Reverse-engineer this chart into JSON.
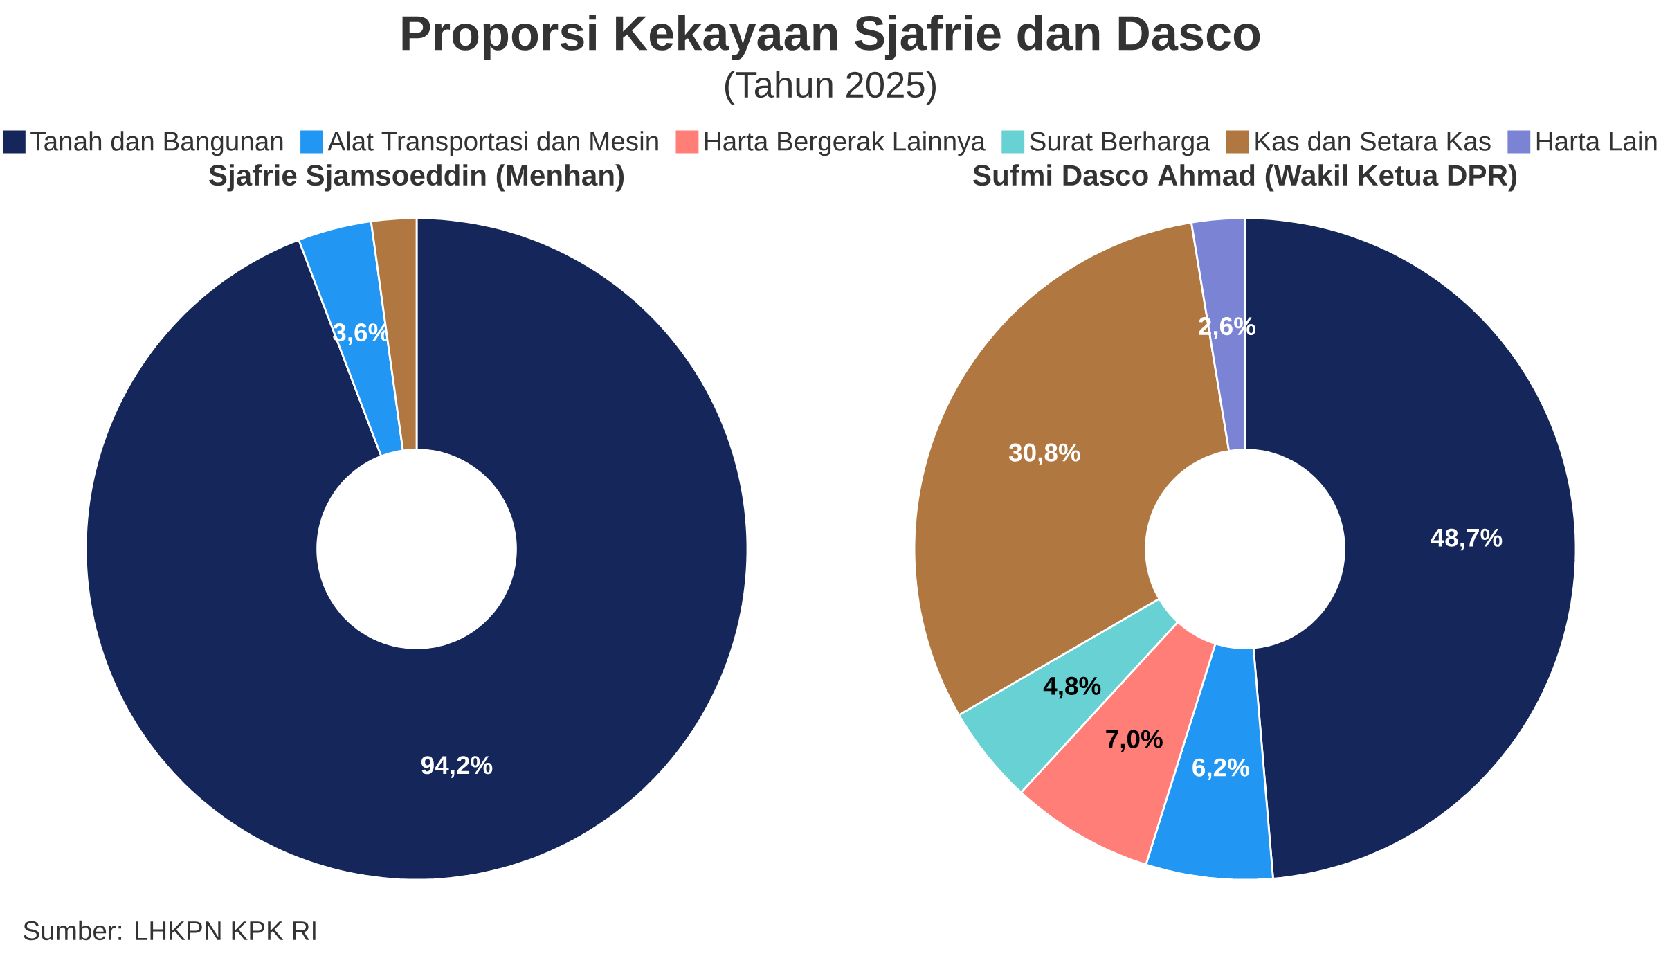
{
  "chart_data": [
    {
      "type": "other",
      "title": "Proporsi Kekayaan Sjafrie dan Dasco",
      "subtitle": "(Tahun 2025)",
      "annotations": [
        "Sumber: LHKPN KPK RI"
      ]
    },
    {
      "type": "donut",
      "categories": [
        "Tanah dan Bangunan",
        "Alat Transportasi dan Mesin",
        "Harta Bergerak Lainnya",
        "Surat Berharga",
        "Kas dan Setara Kas",
        "Harta Lain"
      ],
      "colors": [
        "#15275a",
        "#2196f3",
        "#ff7f78",
        "#67d1d4",
        "#b07840",
        "#7b84d4"
      ],
      "legend": "top",
      "series": [
        {
          "name": "Sjafrie Sjamsoeddin (Menhan)",
          "values": [
            94.2,
            3.6,
            null,
            null,
            2.2,
            null
          ],
          "value_labels": [
            "94,2%",
            "3,6%",
            null,
            null,
            null,
            null
          ]
        },
        {
          "name": "Sufmi Dasco Ahmad (Wakil Ketua DPR)",
          "values": [
            48.7,
            6.2,
            7.0,
            4.8,
            30.8,
            2.6
          ],
          "value_labels": [
            "48,7%",
            "6,2%",
            "7,0%",
            "4,8%",
            "30,8%",
            "2,6%"
          ]
        }
      ]
    }
  ]
}
